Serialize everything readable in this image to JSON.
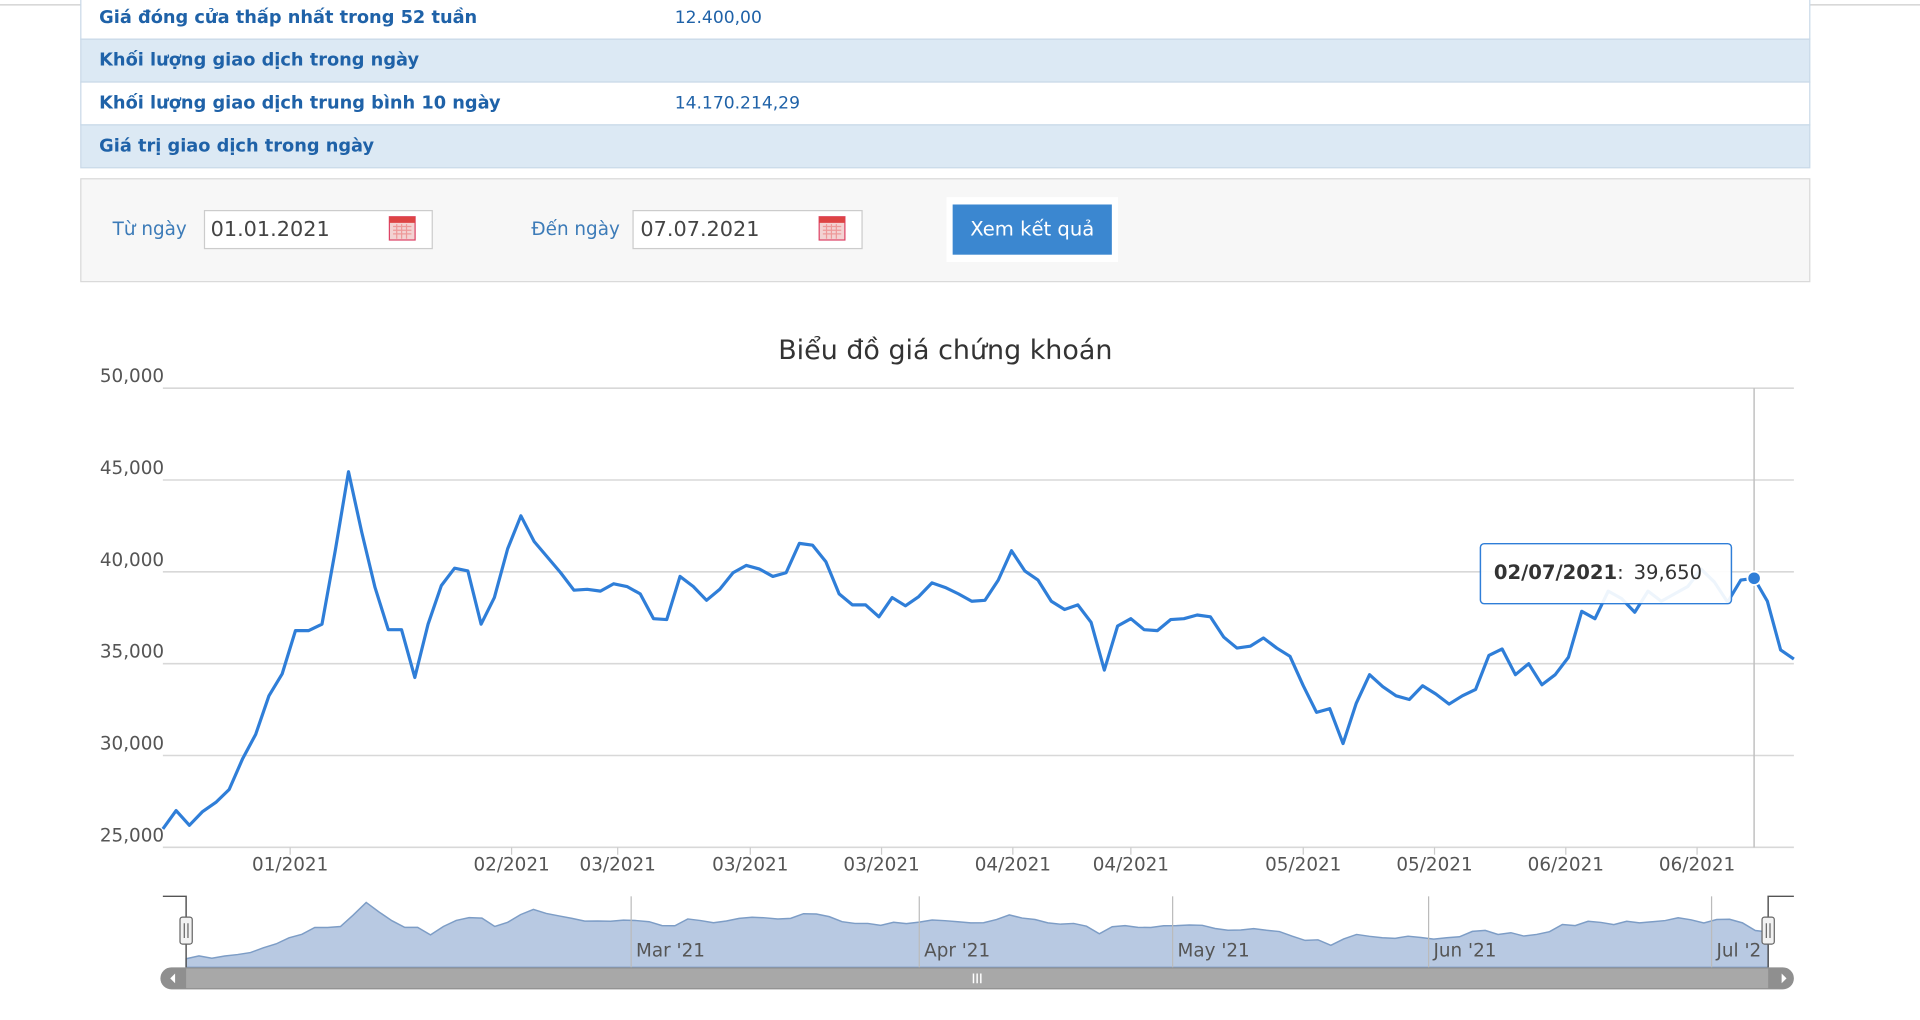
{
  "table": {
    "rows": [
      {
        "label": "Giá đóng cửa thấp nhất trong 52 tuần",
        "value": "12.400,00"
      },
      {
        "label": "Khối lượng giao dịch trong ngày"
      },
      {
        "label": "Khối lượng giao dịch trung bình 10 ngày",
        "value": "14.170.214,29"
      },
      {
        "label": "Giá trị giao dịch trong ngày"
      }
    ]
  },
  "form": {
    "from_label": "Từ ngày",
    "from_value": "01.01.2021",
    "to_label": "Đến ngày",
    "to_value": "07.07.2021",
    "button": "Xem kết quả"
  },
  "chart_data": {
    "type": "line",
    "title": "Biểu đồ giá chứng khoán",
    "series": [
      {
        "color": "#2f7ed8",
        "values": [
          26000,
          27000,
          26200,
          26950,
          27450,
          28150,
          29800,
          31150,
          33250,
          34450,
          36800,
          36800,
          37150,
          41150,
          45450,
          42150,
          39150,
          36850,
          36850,
          34250,
          37150,
          39250,
          40200,
          40050,
          37150,
          38600,
          41250,
          43050,
          41650,
          40800,
          39950,
          39000,
          39050,
          38950,
          39350,
          39200,
          38800,
          37450,
          37400,
          39750,
          39200,
          38450,
          39050,
          39950,
          40350,
          40150,
          39750,
          39950,
          41550,
          41450,
          40550,
          38800,
          38200,
          38200,
          37550,
          38600,
          38150,
          38650,
          39400,
          39150,
          38800,
          38400,
          38450,
          39550,
          41150,
          40050,
          39550,
          38400,
          37950,
          38200,
          37250,
          34650,
          37050,
          37450,
          36850,
          36800,
          37400,
          37450,
          37650,
          37550,
          36450,
          35850,
          35950,
          36400,
          35850,
          35400,
          33800,
          32350,
          32550,
          30650,
          32850,
          34400,
          33750,
          33250,
          33050,
          33800,
          33350,
          32800,
          33250,
          33600,
          35450,
          35800,
          34400,
          35000,
          33850,
          34400,
          35350,
          37850,
          37450,
          38950,
          38550,
          37800,
          38950,
          38400,
          38800,
          39200,
          40150,
          39450,
          38350,
          39550,
          39650,
          38400,
          35750,
          35250
        ]
      }
    ],
    "ylim": [
      25000,
      50000
    ],
    "yticks": [
      {
        "value": 25000,
        "label": "25,000"
      },
      {
        "value": 30000,
        "label": "30,000"
      },
      {
        "value": 35000,
        "label": "35,000"
      },
      {
        "value": 40000,
        "label": "40,000"
      },
      {
        "value": 45000,
        "label": "45,000"
      },
      {
        "value": 50000,
        "label": "50,000"
      }
    ],
    "xlim": [
      0,
      123
    ],
    "xticks": [
      {
        "value": 9.6,
        "label": "01/2021"
      },
      {
        "value": 26.3,
        "label": "02/2021"
      },
      {
        "value": 34.3,
        "label": "03/2021"
      },
      {
        "value": 44.3,
        "label": "03/2021"
      },
      {
        "value": 54.2,
        "label": "03/2021"
      },
      {
        "value": 64.1,
        "label": "04/2021"
      },
      {
        "value": 73.0,
        "label": "04/2021"
      },
      {
        "value": 86.0,
        "label": "05/2021"
      },
      {
        "value": 95.9,
        "label": "05/2021"
      },
      {
        "value": 105.8,
        "label": "06/2021"
      },
      {
        "value": 115.7,
        "label": "06/2021"
      }
    ],
    "grid": true,
    "tooltip": {
      "date": "02/07/2021",
      "separator": ":",
      "value": 39650,
      "value_label": "39,650"
    },
    "navigator": {
      "labels": [
        {
          "value": 34.6,
          "label": "Mar '21"
        },
        {
          "value": 57.0,
          "label": "Apr '21"
        },
        {
          "value": 76.7,
          "label": "May '21"
        },
        {
          "value": 96.6,
          "label": "Jun '21"
        },
        {
          "value": 118.6,
          "label": "Jul '2"
        }
      ],
      "fill": "#b8c9e2",
      "stroke": "#7d9dc6"
    }
  }
}
